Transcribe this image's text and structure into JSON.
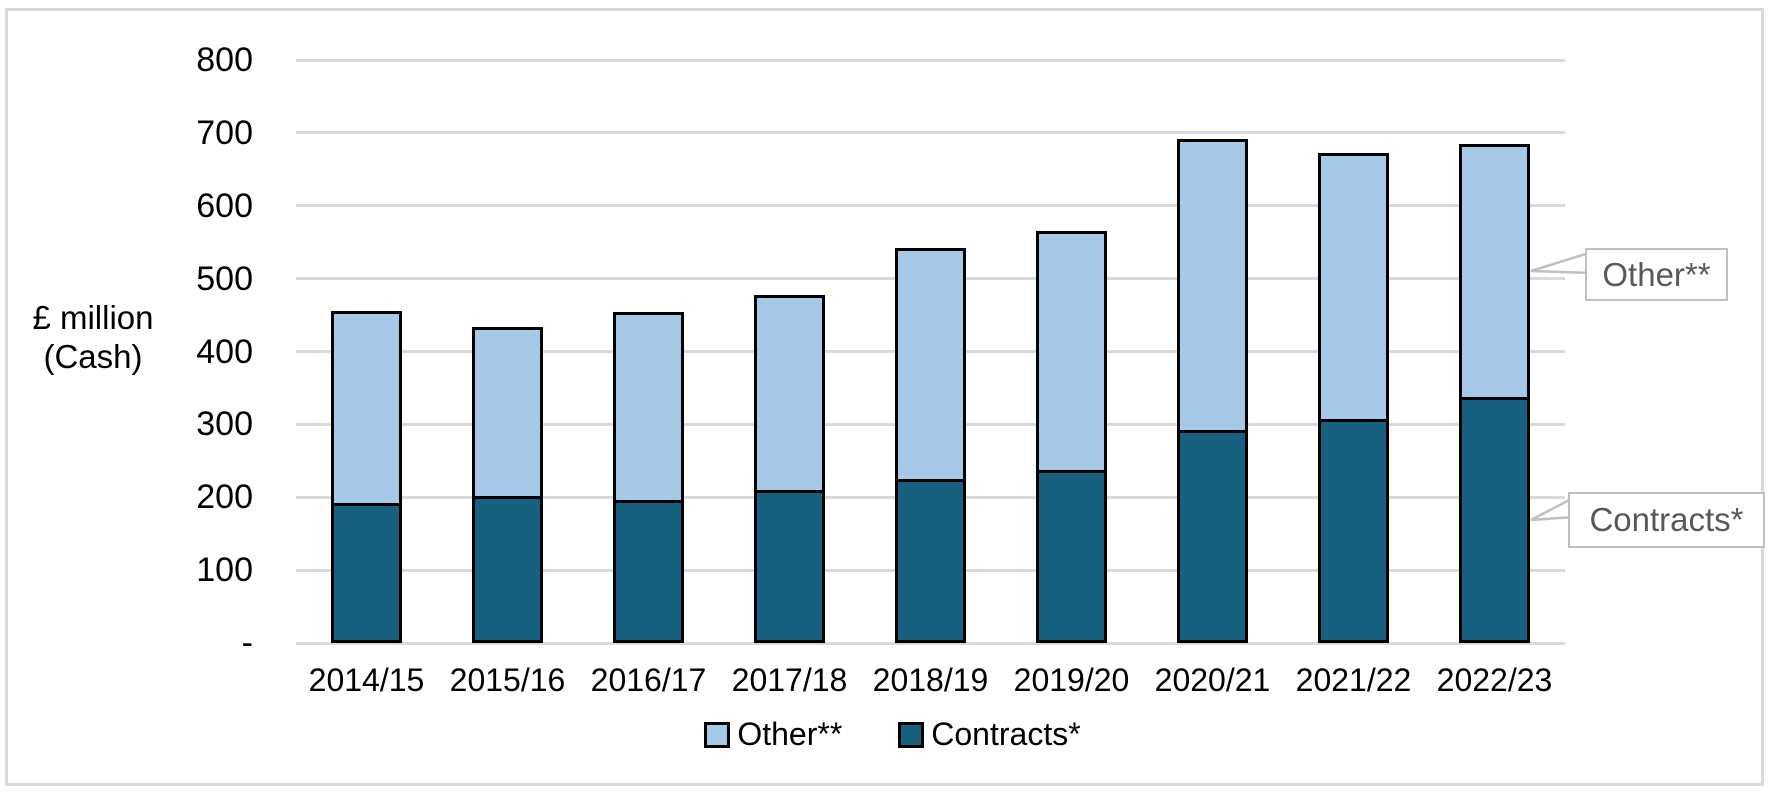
{
  "figure": {
    "y_axis_title_line1": "£ million",
    "y_axis_title_line2": "(Cash)",
    "callouts": {
      "other": "Other**",
      "contracts": "Contracts*"
    }
  },
  "chart_data": {
    "type": "bar",
    "stacked": true,
    "title": "",
    "xlabel": "",
    "ylabel": "£ million (Cash)",
    "categories": [
      "2014/15",
      "2015/16",
      "2016/17",
      "2017/18",
      "2018/19",
      "2019/20",
      "2020/21",
      "2021/22",
      "2022/23"
    ],
    "series": [
      {
        "name": "Contracts*",
        "color": "#176080",
        "values": [
          192,
          202,
          196,
          210,
          225,
          237,
          292,
          307,
          338
        ]
      },
      {
        "name": "Other**",
        "color": "#a7c9e8",
        "values": [
          263,
          231,
          258,
          268,
          317,
          329,
          399,
          365,
          347
        ]
      }
    ],
    "totals": [
      455,
      433,
      454,
      478,
      542,
      566,
      691,
      672,
      685
    ],
    "ylim": [
      0,
      800
    ],
    "ytick_step": 100,
    "ytick_labels": [
      "800",
      "700",
      "600",
      "500",
      "400",
      "300",
      "200",
      "100",
      "-"
    ],
    "grid": true,
    "gridline_color": "#d9d9d9",
    "bar_outline_color": "#000000",
    "legend_position": "bottom",
    "legend": [
      {
        "label": "Other**",
        "color": "#a7c9e8"
      },
      {
        "label": "Contracts*",
        "color": "#176080"
      }
    ]
  }
}
